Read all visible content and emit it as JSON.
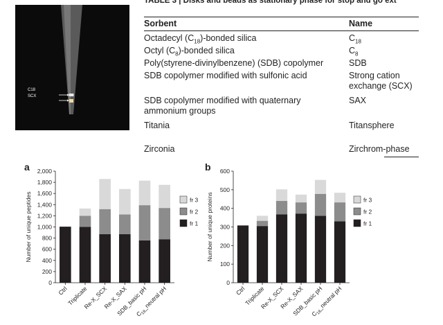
{
  "photo": {
    "labels": [
      "C18",
      "SCX"
    ]
  },
  "table": {
    "caption": "TABLE 3 | Disks and beads as stationary phase for stop and go ext",
    "headers": {
      "sorbent": "Sorbent",
      "name": "Name"
    },
    "rows": [
      {
        "sorbent": "Octadecyl (C18)-bonded silica",
        "name": "C18"
      },
      {
        "sorbent": "Octyl (C8)-bonded silica",
        "name": "C8"
      },
      {
        "sorbent": "Poly(styrene-divinylbenzene) (SDB) copolymer",
        "name": "SDB"
      },
      {
        "sorbent": "SDB copolymer modified with sulfonic acid",
        "name": "Strong cation exchange (SCX)"
      },
      {
        "sorbent": "SDB copolymer modified with quaternary ammonium groups",
        "name": "SAX"
      },
      {
        "sorbent": "Titania",
        "name": "Titansphere"
      },
      {
        "sorbent": "Zirconia",
        "name": "Zirchrom-phase"
      }
    ]
  },
  "chart_data": [
    {
      "type": "bar",
      "panel_label": "a",
      "stacked": true,
      "categories": [
        "Ctrl",
        "Triplicate",
        "Re-X_SCX",
        "Re-X_SAX",
        "SDB_basic pH",
        "C18_neutral pH"
      ],
      "series": [
        {
          "name": "fr 1",
          "color": "#231f20",
          "values": [
            1005,
            1000,
            870,
            870,
            760,
            780
          ]
        },
        {
          "name": "fr 2",
          "color": "#8c8c8c",
          "values": [
            0,
            200,
            450,
            355,
            630,
            560
          ]
        },
        {
          "name": "fr 3",
          "color": "#d9d9d9",
          "values": [
            0,
            130,
            540,
            455,
            440,
            415
          ]
        }
      ],
      "ylabel": "Number of unique peptides",
      "ylim": [
        0,
        2000
      ],
      "yticks": [
        "0",
        "200",
        "400",
        "600",
        "800",
        "1,000",
        "1,200",
        "1,400",
        "1,600",
        "1,800",
        "2,000"
      ],
      "legend": "right"
    },
    {
      "type": "bar",
      "panel_label": "b",
      "stacked": true,
      "categories": [
        "Ctrl",
        "Triplicate",
        "Re-X_SCX",
        "Re-X_SAX",
        "SDB_basic pH",
        "C18_neutral pH"
      ],
      "series": [
        {
          "name": "fr 1",
          "color": "#231f20",
          "values": [
            308,
            305,
            368,
            372,
            360,
            330
          ]
        },
        {
          "name": "fr 2",
          "color": "#8c8c8c",
          "values": [
            0,
            28,
            72,
            60,
            118,
            102
          ]
        },
        {
          "name": "fr 3",
          "color": "#d9d9d9",
          "values": [
            0,
            27,
            62,
            42,
            75,
            52
          ]
        }
      ],
      "ylabel": "Number of unique proteins",
      "ylim": [
        0,
        600
      ],
      "yticks": [
        "0",
        "100",
        "200",
        "300",
        "400",
        "500",
        "600"
      ],
      "legend": "right"
    }
  ]
}
